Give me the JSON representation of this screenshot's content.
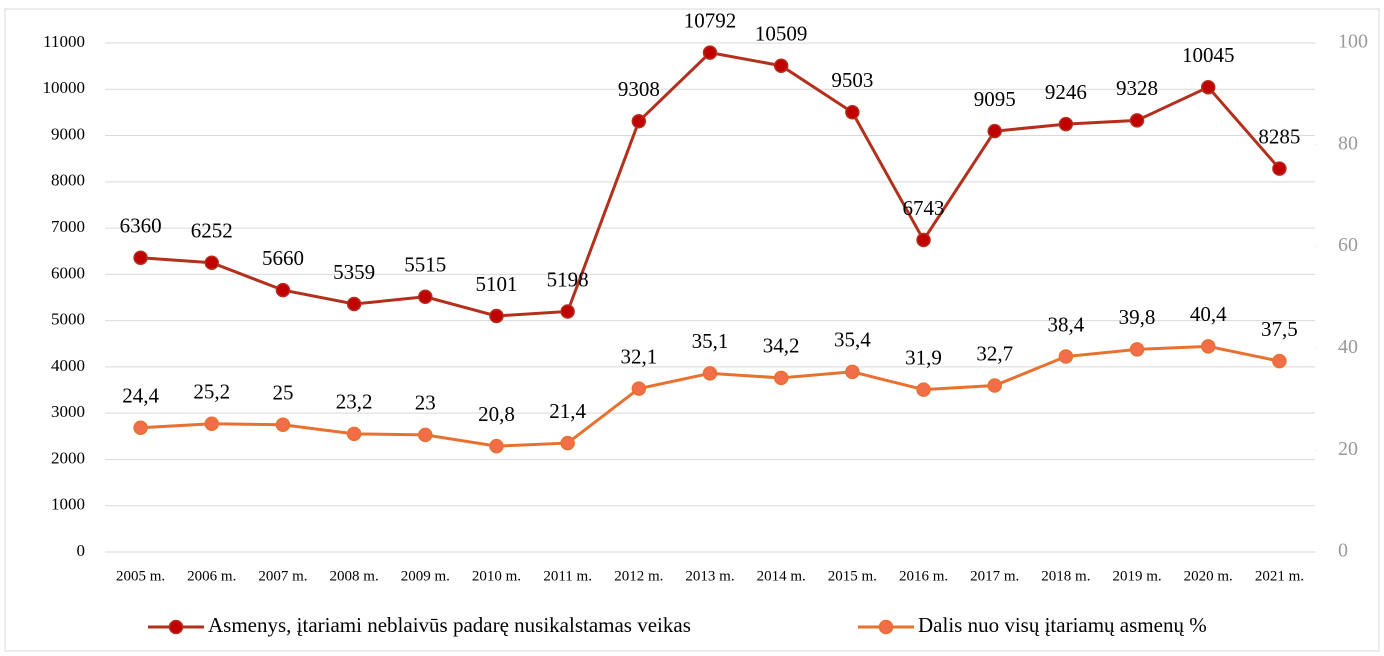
{
  "chart_data": {
    "type": "line",
    "categories": [
      "2005 m.",
      "2006 m.",
      "2007 m.",
      "2008 m.",
      "2009 m.",
      "2010 m.",
      "2011 m.",
      "2012 m.",
      "2013 m.",
      "2014 m.",
      "2015 m.",
      "2016 m.",
      "2017 m.",
      "2018 m.",
      "2019 m.",
      "2020 m.",
      "2021 m."
    ],
    "series": [
      {
        "name": "Asmenys, įtariami neblaivūs padarę nusikalstamas veikas",
        "color": "#c00000",
        "line_color": "#b3301c",
        "axis": "y",
        "values": [
          6360,
          6252,
          5660,
          5359,
          5515,
          5101,
          5198,
          9308,
          10792,
          10509,
          9503,
          6743,
          9095,
          9246,
          9328,
          10045,
          8285
        ]
      },
      {
        "name": "Dalis nuo visų įtariamų asmenų %",
        "color": "#f26d4a",
        "line_color": "#e8712f",
        "axis": "y2",
        "values": [
          24.4,
          25.2,
          25,
          23.2,
          23,
          20.8,
          21.4,
          32.1,
          35.1,
          34.2,
          35.4,
          31.9,
          32.7,
          38.4,
          39.8,
          40.4,
          37.5
        ],
        "value_labels": [
          "24,4",
          "25,2",
          "25",
          "23,2",
          "23",
          "20,8",
          "21,4",
          "32,1",
          "35,1",
          "34,2",
          "35,4",
          "31,9",
          "32,7",
          "38,4",
          "39,8",
          "40,4",
          "37,5"
        ]
      }
    ],
    "ylim": [
      0,
      11000
    ],
    "yticks": [
      0,
      1000,
      2000,
      3000,
      4000,
      5000,
      6000,
      7000,
      8000,
      9000,
      10000,
      11000
    ],
    "y2lim": [
      0,
      100
    ],
    "y2ticks": [
      0,
      20,
      40,
      60,
      80,
      100
    ],
    "grid": true,
    "legend": "bottom"
  }
}
